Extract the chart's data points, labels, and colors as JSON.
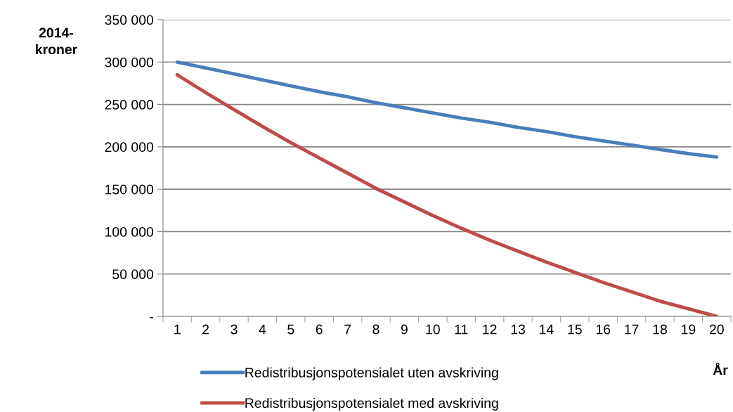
{
  "chart_data": {
    "type": "line",
    "ylabel": "2014-\nkroner",
    "xlabel": "År",
    "categories": [
      "1",
      "2",
      "3",
      "4",
      "5",
      "6",
      "7",
      "8",
      "9",
      "10",
      "11",
      "12",
      "13",
      "14",
      "15",
      "16",
      "17",
      "18",
      "19",
      "20"
    ],
    "series": [
      {
        "name": "Redistribusjonspotensialet uten avskriving",
        "color": "#4a7ebb",
        "values": [
          300000,
          293000,
          286000,
          279000,
          272000,
          265000,
          259000,
          252000,
          246000,
          240000,
          234000,
          229000,
          223000,
          218000,
          212000,
          207000,
          202000,
          197000,
          192000,
          188000
        ]
      },
      {
        "name": "Redistribusjonspotensialet med avskriving",
        "color": "#be4b48",
        "values": [
          285000,
          264000,
          244000,
          224000,
          205000,
          187000,
          169000,
          151000,
          135000,
          119000,
          104000,
          90000,
          77000,
          64000,
          52000,
          40000,
          29000,
          18000,
          9000,
          0
        ]
      }
    ],
    "ylim": [
      0,
      350000
    ],
    "yticks": [
      {
        "value": 0,
        "label": "-"
      },
      {
        "value": 50000,
        "label": "50 000"
      },
      {
        "value": 100000,
        "label": "100 000"
      },
      {
        "value": 150000,
        "label": "150 000"
      },
      {
        "value": 200000,
        "label": "200 000"
      },
      {
        "value": 250000,
        "label": "250 000"
      },
      {
        "value": 300000,
        "label": "300 000"
      },
      {
        "value": 350000,
        "label": "350 000"
      }
    ],
    "grid": "y",
    "legend": "bottom",
    "marker": "none",
    "line_style": "solid"
  }
}
